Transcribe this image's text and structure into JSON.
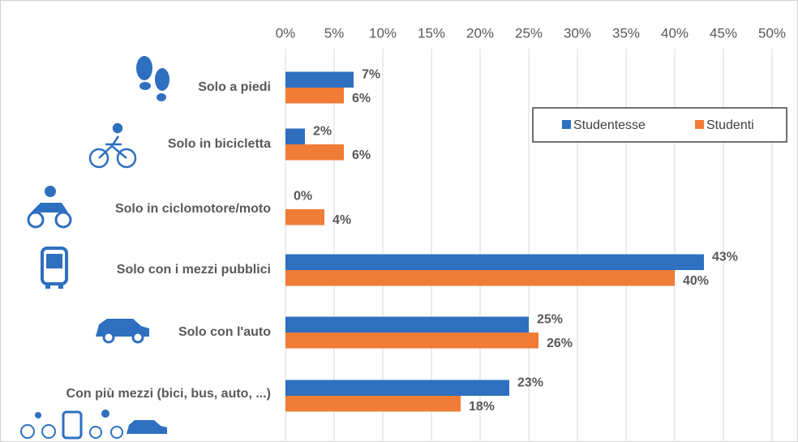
{
  "chart_data": {
    "type": "hbar",
    "categories": [
      "Solo a piedi",
      "Solo in bicicletta",
      "Solo in ciclomotore/moto",
      "Solo con i mezzi pubblici",
      "Solo con l'auto",
      "Con più mezzi (bici, bus, auto, ...)"
    ],
    "series": [
      {
        "name": "Studentesse",
        "color": "#2e6fc0",
        "values": [
          7,
          2,
          0,
          43,
          25,
          23
        ],
        "value_labels": [
          "7%",
          "2%",
          "0%",
          "43%",
          "25%",
          "23%"
        ]
      },
      {
        "name": "Studenti",
        "color": "#f07c35",
        "values": [
          6,
          6,
          4,
          40,
          26,
          18
        ],
        "value_labels": [
          "6%",
          "6%",
          "4%",
          "40%",
          "26%",
          "18%"
        ]
      }
    ],
    "xlim": [
      0,
      50
    ],
    "xticks": [
      {
        "value": 0,
        "label": "0%"
      },
      {
        "value": 5,
        "label": "5%"
      },
      {
        "value": 10,
        "label": "10%"
      },
      {
        "value": 15,
        "label": "15%"
      },
      {
        "value": 20,
        "label": "20%"
      },
      {
        "value": 25,
        "label": "25%"
      },
      {
        "value": 30,
        "label": "30%"
      },
      {
        "value": 35,
        "label": "35%"
      },
      {
        "value": 40,
        "label": "40%"
      },
      {
        "value": 45,
        "label": "45%"
      },
      {
        "value": 50,
        "label": "50%"
      }
    ],
    "grid": true,
    "legend": "upper right"
  }
}
